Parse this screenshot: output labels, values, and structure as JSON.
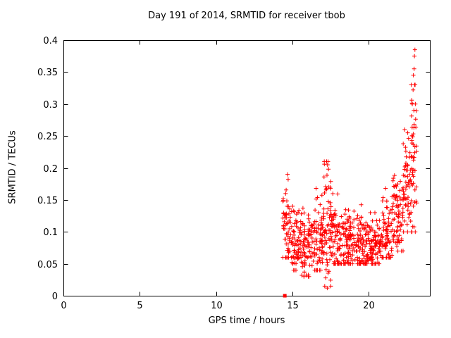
{
  "chart_data": {
    "type": "scatter",
    "title": "Day 191 of 2014, SRMTID for receiver tbob",
    "xlabel": "GPS time / hours",
    "ylabel": "SRMTID / TECUs",
    "xlim": [
      0,
      24
    ],
    "ylim": [
      0,
      0.4
    ],
    "xticks": {
      "values": [
        0,
        5,
        10,
        15,
        20
      ],
      "labels": [
        "0",
        "5",
        "10",
        "15",
        "20"
      ]
    },
    "yticks": {
      "values": [
        0,
        0.05,
        0.1,
        0.15,
        0.2,
        0.25,
        0.3,
        0.35,
        0.4
      ],
      "labels": [
        "0",
        "0.05",
        "0.1",
        "0.15",
        "0.2",
        "0.25",
        "0.3",
        "0.35",
        "0.4"
      ]
    },
    "grid": false,
    "legend": "none",
    "marker": "plus",
    "marker_color": "#ff0000",
    "border_color": "#000000",
    "baseline_point": {
      "x": 14.5,
      "y": 0,
      "marker": "filled-square",
      "color": "#ff0000"
    },
    "seed": 1910,
    "scatter_clusters": [
      {
        "x_min": 14.35,
        "x_max": 14.95,
        "count": 60,
        "y_center": 0.105,
        "y_spread": 0.03,
        "y_min": 0.06,
        "y_max": 0.185
      },
      {
        "x_min": 14.95,
        "x_max": 15.6,
        "count": 70,
        "y_center": 0.085,
        "y_spread": 0.025,
        "y_min": 0.04,
        "y_max": 0.14
      },
      {
        "x_min": 15.6,
        "x_max": 16.3,
        "count": 75,
        "y_center": 0.08,
        "y_spread": 0.03,
        "y_min": 0.03,
        "y_max": 0.15
      },
      {
        "x_min": 16.3,
        "x_max": 17.0,
        "count": 70,
        "y_center": 0.09,
        "y_spread": 0.03,
        "y_min": 0.04,
        "y_max": 0.165
      },
      {
        "x_min": 17.0,
        "x_max": 17.55,
        "count": 65,
        "y_center": 0.1,
        "y_spread": 0.05,
        "y_min": 0.015,
        "y_max": 0.21
      },
      {
        "x_min": 17.55,
        "x_max": 18.35,
        "count": 80,
        "y_center": 0.09,
        "y_spread": 0.03,
        "y_min": 0.05,
        "y_max": 0.165
      },
      {
        "x_min": 18.35,
        "x_max": 19.2,
        "count": 90,
        "y_center": 0.082,
        "y_spread": 0.025,
        "y_min": 0.05,
        "y_max": 0.155
      },
      {
        "x_min": 19.2,
        "x_max": 20.0,
        "count": 90,
        "y_center": 0.08,
        "y_spread": 0.025,
        "y_min": 0.05,
        "y_max": 0.15
      },
      {
        "x_min": 20.0,
        "x_max": 20.85,
        "count": 90,
        "y_center": 0.078,
        "y_spread": 0.022,
        "y_min": 0.05,
        "y_max": 0.13
      },
      {
        "x_min": 20.85,
        "x_max": 21.55,
        "count": 70,
        "y_center": 0.1,
        "y_spread": 0.03,
        "y_min": 0.06,
        "y_max": 0.165
      },
      {
        "x_min": 21.55,
        "x_max": 22.25,
        "count": 75,
        "y_center": 0.12,
        "y_spread": 0.035,
        "y_min": 0.07,
        "y_max": 0.19
      },
      {
        "x_min": 22.25,
        "x_max": 22.75,
        "count": 55,
        "y_center": 0.165,
        "y_spread": 0.04,
        "y_min": 0.1,
        "y_max": 0.26
      },
      {
        "x_min": 22.75,
        "x_max": 23.15,
        "count": 50,
        "y_center": 0.2,
        "y_spread": 0.06,
        "y_min": 0.1,
        "y_max": 0.33
      }
    ],
    "outlier_points": [
      [
        14.68,
        0.19
      ],
      [
        14.72,
        0.182
      ],
      [
        15.9,
        0.032
      ],
      [
        16.55,
        0.168
      ],
      [
        17.28,
        0.012
      ],
      [
        17.3,
        0.205
      ],
      [
        17.33,
        0.21
      ],
      [
        17.36,
        0.198
      ],
      [
        21.1,
        0.168
      ],
      [
        21.9,
        0.175
      ],
      [
        22.55,
        0.255
      ],
      [
        22.85,
        0.3
      ],
      [
        22.9,
        0.322
      ],
      [
        22.92,
        0.345
      ],
      [
        22.95,
        0.29
      ],
      [
        22.97,
        0.355
      ],
      [
        22.99,
        0.375
      ],
      [
        23.02,
        0.385
      ],
      [
        23.05,
        0.3
      ]
    ]
  }
}
